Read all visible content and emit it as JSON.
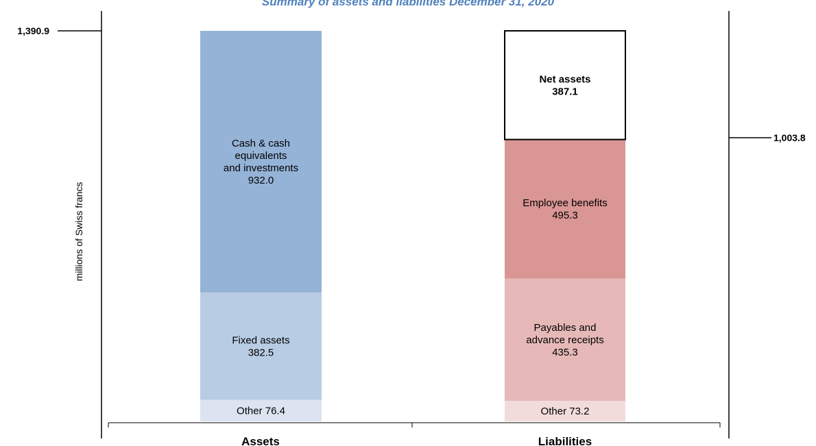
{
  "chart_data": {
    "type": "bar",
    "stacked": true,
    "title": "Summary of assets and liabilities December 31, 2020",
    "ylabel": "millions of Swiss francs",
    "categories": [
      "Assets",
      "Liabilities"
    ],
    "left_marker": "1,390.9",
    "right_marker": "1,003.8",
    "assets": [
      {
        "name": "Other",
        "value": 76.4,
        "color": "#dbe4f0",
        "lines": [
          "Other 76.4"
        ]
      },
      {
        "name": "Fixed assets",
        "value": 382.5,
        "color": "#b8cce4",
        "lines": [
          "Fixed assets",
          "382.5"
        ]
      },
      {
        "name": "Cash & cash equivalents and investments",
        "value": 932.0,
        "color": "#95b3d7",
        "lines": [
          "Cash & cash",
          "equivalents",
          "and investments",
          "932.0"
        ]
      }
    ],
    "liabilities": [
      {
        "name": "Other",
        "value": 73.2,
        "color": "#f2dcdb",
        "lines": [
          "Other 73.2"
        ]
      },
      {
        "name": "Payables and advance receipts",
        "value": 435.3,
        "color": "#e6b9b8",
        "lines": [
          "Payables and",
          "advance receipts",
          "435.3"
        ]
      },
      {
        "name": "Employee benefits",
        "value": 495.3,
        "color": "#d99694",
        "lines": [
          "Employee benefits",
          "495.3"
        ]
      },
      {
        "name": "Net assets",
        "value": 387.1,
        "color": "#ffffff",
        "outlined": true,
        "bold": true,
        "lines": [
          "Net assets",
          "387.1"
        ]
      }
    ],
    "colors": {
      "title": "#4f81bd",
      "text": "#000000"
    }
  }
}
